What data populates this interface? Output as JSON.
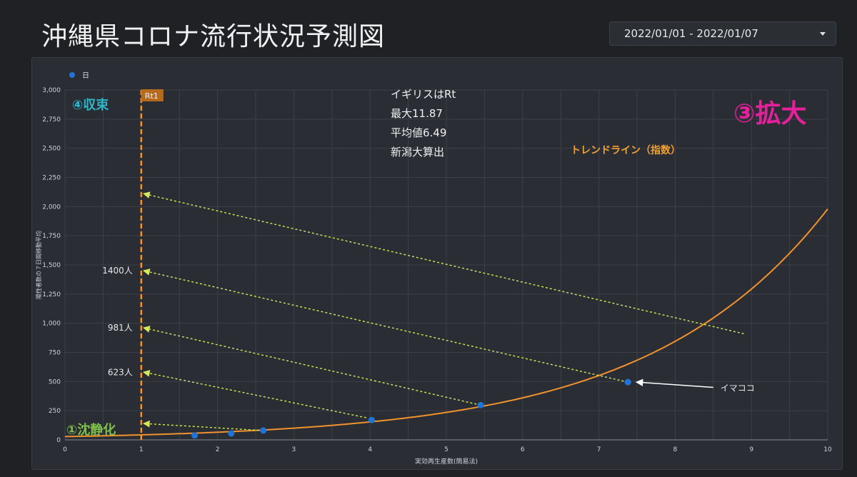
{
  "header": {
    "title": "沖縄県コロナ流行状況予測図",
    "date_range": "2022/01/01 - 2022/01/07"
  },
  "colors": {
    "background": "#1f2125",
    "panel": "#2a2d34",
    "point": "#1e74d8",
    "trend": "#f0922e",
    "rt1_line": "#f0922e",
    "arrow": "#d4e85a",
    "phase_collapse": "#2eb6c8",
    "phase_quiet": "#7dc14a",
    "phase_expand": "#e6209a",
    "trend_label": "#f0a030"
  },
  "chart_data": {
    "type": "scatter",
    "title": "",
    "xlabel": "実効再生産数(簡易法)",
    "ylabel": "陽性者数の７日間移動平均",
    "xlim": [
      0,
      10
    ],
    "ylim": [
      0,
      3000
    ],
    "x_ticks": [
      0,
      1,
      2,
      3,
      4,
      5,
      6,
      7,
      8,
      9,
      10
    ],
    "y_ticks": [
      0,
      250,
      500,
      750,
      1000,
      1250,
      1500,
      1750,
      2000,
      2250,
      2500,
      2750,
      3000
    ],
    "y_tick_labels": [
      "0",
      "250",
      "500",
      "750",
      "1,000",
      "1,250",
      "1,500",
      "1,750",
      "2,000",
      "2,250",
      "2,500",
      "2,750",
      "3,000"
    ],
    "grid": true,
    "legend": {
      "position": "top-left",
      "label": "日"
    },
    "series": [
      {
        "name": "日",
        "x": [
          1.7,
          2.18,
          2.6,
          4.02,
          5.45,
          7.38
        ],
        "y": [
          38,
          55,
          80,
          170,
          298,
          495
        ]
      }
    ],
    "trendline": {
      "type": "exponential",
      "label": "トレンドライン（指数）",
      "x": [
        0,
        1,
        2,
        3,
        4,
        5,
        6,
        7,
        8,
        9,
        10
      ],
      "y": [
        28,
        39,
        55,
        78,
        112,
        160,
        248,
        390,
        680,
        1170,
        1980
      ]
    },
    "reference_line": {
      "x": 1,
      "label": "Rt1"
    },
    "annotations": {
      "uk_note": [
        "イギリスはRt",
        "最大11.87",
        "平均値6.49",
        "新潟大算出"
      ],
      "phase_collapse": "④収束",
      "phase_quiet": "①沈静化",
      "phase_expand": "③拡大",
      "trend_label": "トレンドライン（指数）",
      "here_label": "イマココ",
      "arrow_labels": [
        {
          "text": "1400人",
          "y": 1450
        },
        {
          "text": "981人",
          "y": 960
        },
        {
          "text": "623人",
          "y": 580
        }
      ]
    },
    "arrows": [
      {
        "from": [
          2.6,
          80
        ],
        "to": [
          1.0,
          140
        ]
      },
      {
        "from": [
          3.95,
          190
        ],
        "to": [
          1.0,
          580
        ]
      },
      {
        "from": [
          5.45,
          298
        ],
        "to": [
          1.0,
          960
        ]
      },
      {
        "from": [
          7.38,
          495
        ],
        "to": [
          1.0,
          1450
        ]
      },
      {
        "from": [
          8.9,
          910
        ],
        "to": [
          1.0,
          2110
        ]
      }
    ],
    "here_arrow": {
      "from": [
        8.5,
        450
      ],
      "to": [
        7.5,
        495
      ]
    }
  }
}
